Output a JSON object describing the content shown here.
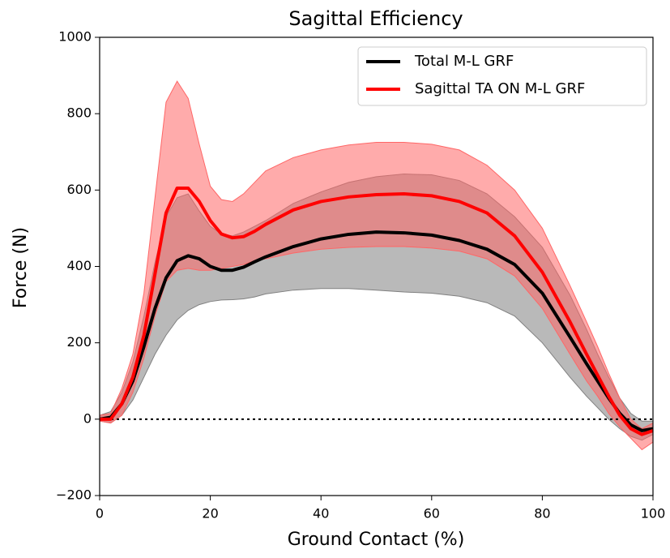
{
  "chart_data": {
    "type": "line_band",
    "title": "Sagittal Efficiency",
    "x_label": "Ground Contact (%)",
    "y_label": "Force (N)",
    "x": [
      0,
      2,
      4,
      6,
      8,
      10,
      12,
      14,
      16,
      18,
      20,
      22,
      24,
      26,
      28,
      30,
      35,
      40,
      45,
      50,
      55,
      60,
      65,
      70,
      75,
      80,
      85,
      88,
      90,
      92,
      94,
      96,
      98,
      100
    ],
    "series": [
      {
        "name": "Total M-L GRF",
        "color": "#000000",
        "band_color": "#808080",
        "values": [
          0,
          5,
          40,
          100,
          190,
          290,
          370,
          415,
          428,
          420,
          400,
          390,
          390,
          398,
          412,
          425,
          452,
          472,
          484,
          490,
          488,
          482,
          468,
          445,
          405,
          330,
          215,
          145,
          100,
          55,
          15,
          -15,
          -30,
          -25
        ],
        "lower": [
          -5,
          -10,
          10,
          50,
          110,
          170,
          220,
          260,
          285,
          300,
          308,
          312,
          313,
          315,
          320,
          328,
          338,
          342,
          342,
          338,
          333,
          330,
          322,
          305,
          270,
          200,
          110,
          60,
          30,
          0,
          -25,
          -45,
          -55,
          -40
        ],
        "upper": [
          10,
          20,
          70,
          150,
          270,
          410,
          530,
          580,
          590,
          545,
          505,
          485,
          480,
          490,
          505,
          520,
          565,
          595,
          620,
          635,
          642,
          640,
          625,
          590,
          530,
          450,
          325,
          235,
          170,
          110,
          55,
          15,
          -5,
          -5
        ]
      },
      {
        "name": "Sagittal TA ON M-L GRF",
        "color": "#ff0000",
        "band_color": "#ff6666",
        "values": [
          0,
          0,
          40,
          110,
          220,
          380,
          540,
          605,
          605,
          570,
          520,
          485,
          475,
          478,
          492,
          510,
          548,
          570,
          582,
          588,
          590,
          585,
          570,
          540,
          480,
          385,
          255,
          170,
          115,
          60,
          10,
          -25,
          -40,
          -30
        ],
        "lower": [
          -5,
          -10,
          10,
          70,
          160,
          270,
          360,
          390,
          395,
          390,
          390,
          395,
          400,
          405,
          415,
          420,
          435,
          445,
          450,
          452,
          452,
          448,
          440,
          420,
          375,
          290,
          170,
          100,
          60,
          15,
          -20,
          -50,
          -80,
          -60
        ],
        "upper": [
          10,
          15,
          80,
          170,
          330,
          580,
          830,
          885,
          840,
          720,
          610,
          575,
          570,
          590,
          620,
          650,
          685,
          705,
          718,
          725,
          725,
          720,
          705,
          665,
          600,
          500,
          350,
          255,
          190,
          120,
          55,
          0,
          -25,
          -10
        ]
      }
    ],
    "hline": 0,
    "xlim": [
      0,
      100
    ],
    "xticks": [
      0,
      20,
      40,
      60,
      80,
      100
    ],
    "ylim": [
      -200,
      1000
    ],
    "yticks": [
      {
        "value": -200,
        "label": "−200"
      },
      0,
      200,
      400,
      600,
      800,
      1000
    ],
    "legend": "upper right"
  }
}
